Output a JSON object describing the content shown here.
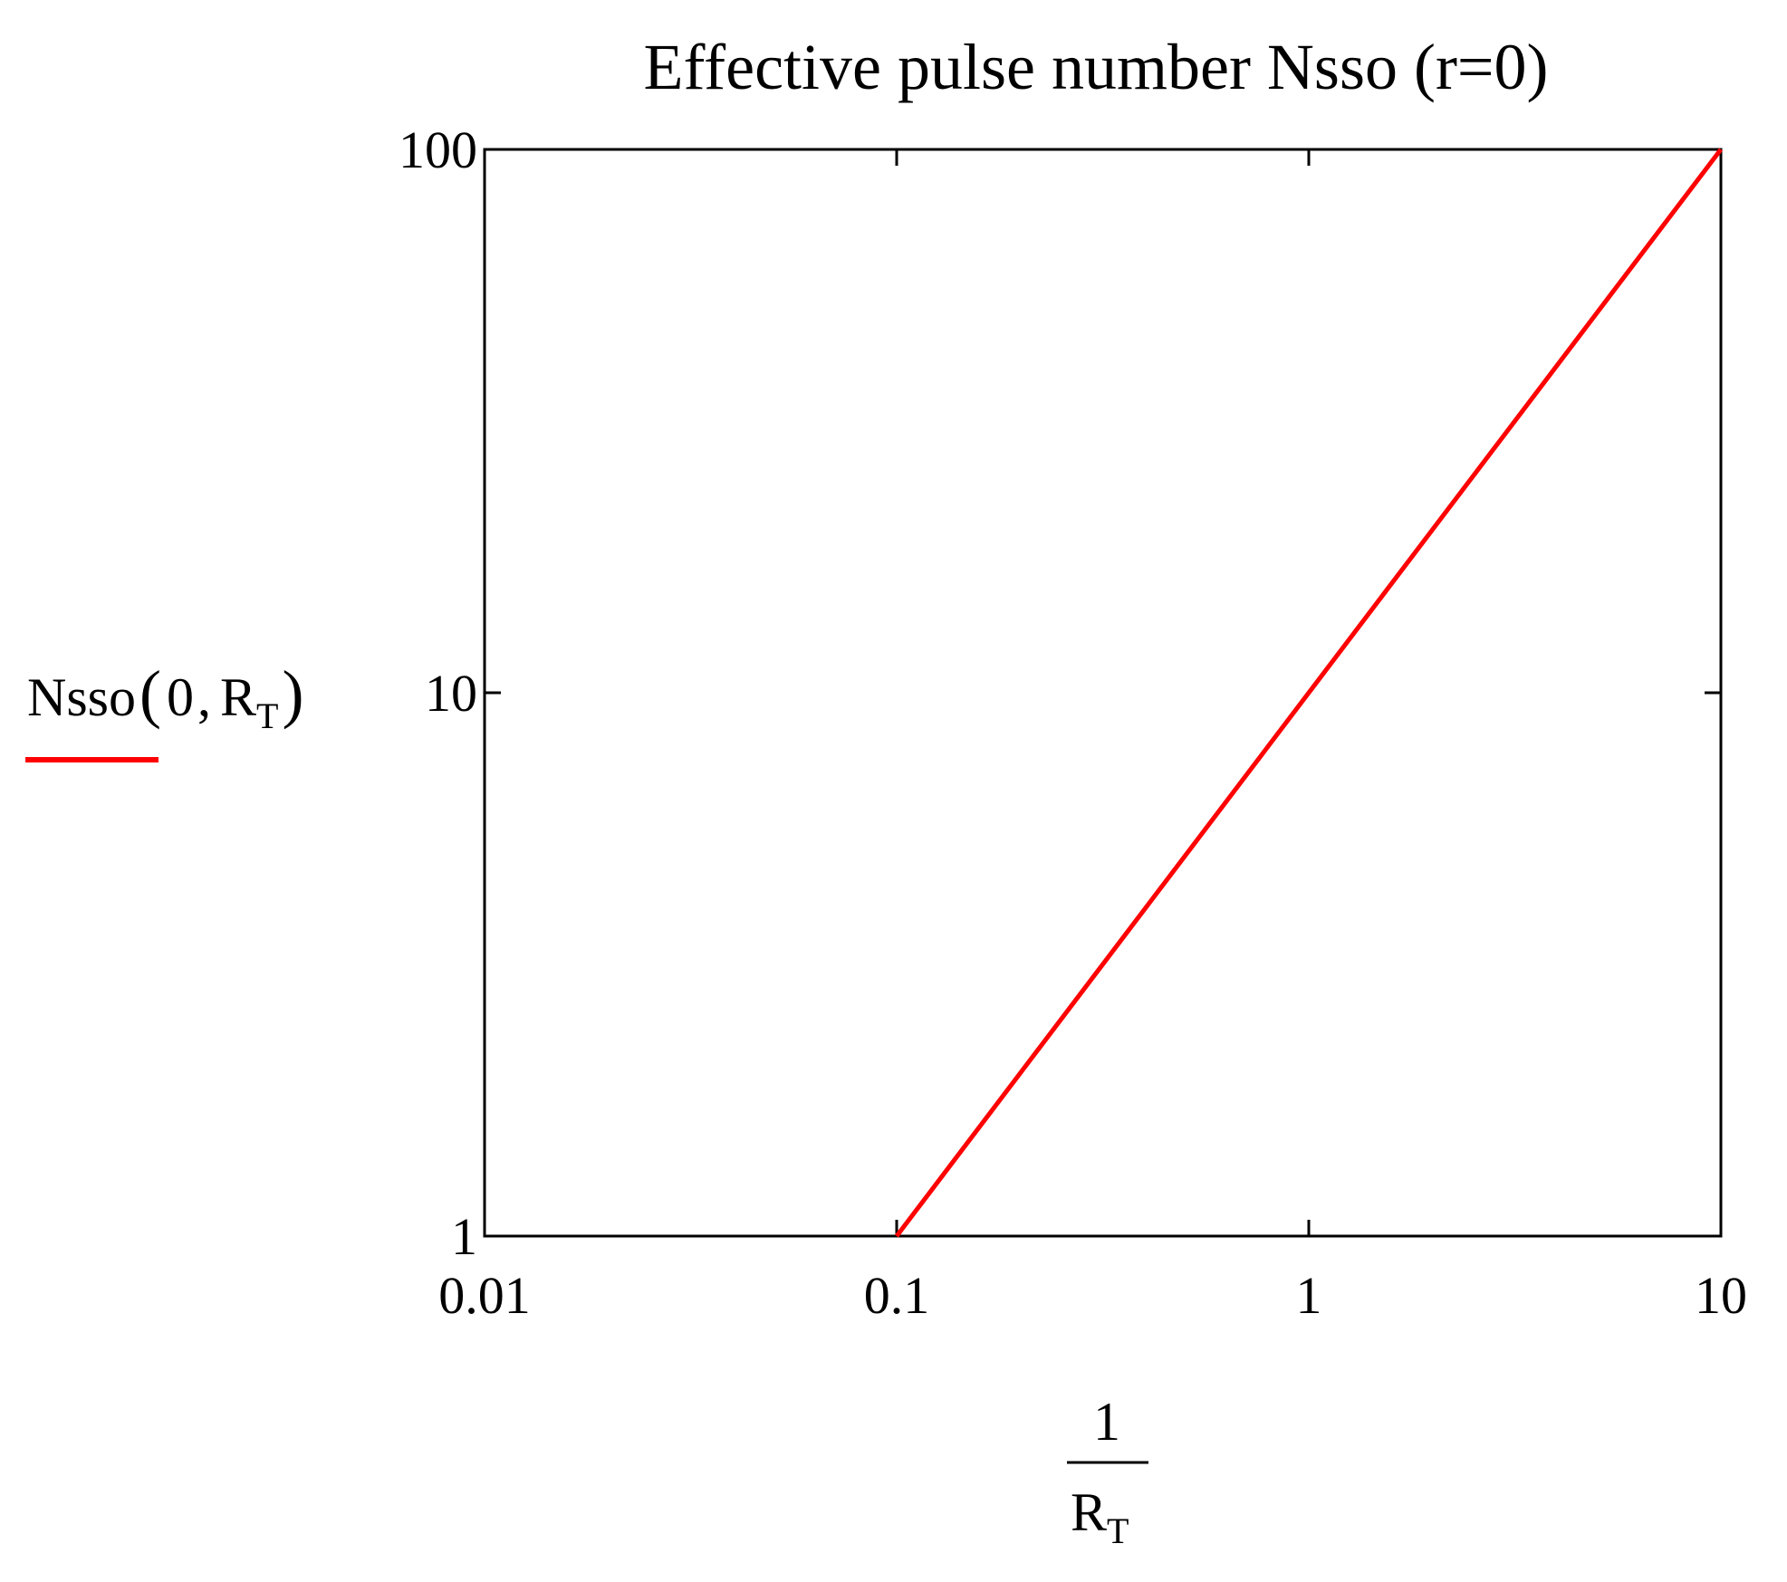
{
  "chart_data": {
    "type": "line",
    "title": "Effective pulse number Nsso (r=0)",
    "x_scale": "log",
    "y_scale": "log",
    "xlim": [
      0.01,
      10
    ],
    "ylim": [
      1,
      100
    ],
    "x_ticks": [
      0.01,
      0.1,
      1,
      10
    ],
    "x_tick_labels": [
      "0.01",
      "0.1",
      "1",
      "10"
    ],
    "y_ticks": [
      1,
      10,
      100
    ],
    "y_tick_labels": [
      "1",
      "10",
      "100"
    ],
    "xlabel": {
      "numerator": "1",
      "denominator_main": "R",
      "denominator_sub": "T"
    },
    "ylabel": {
      "func": "Nsso",
      "open": "(",
      "arg1": "0",
      "comma": ",",
      "arg2_main": "R",
      "arg2_sub": "T",
      "close": ")"
    },
    "grid": false,
    "legend_position": "left",
    "series": [
      {
        "color": "#ff0000",
        "x": [
          0.1,
          0.2,
          0.5,
          1,
          2,
          5,
          10
        ],
        "y": [
          1,
          2,
          5,
          10,
          20,
          50,
          100
        ]
      }
    ]
  }
}
